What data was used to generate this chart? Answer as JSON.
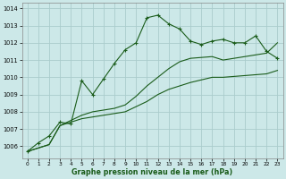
{
  "xlabel": "Graphe pression niveau de la mer (hPa)",
  "background_color": "#cce8e8",
  "grid_color": "#aacccc",
  "line_color": "#1a5c1a",
  "x_values": [
    0,
    1,
    2,
    3,
    4,
    5,
    6,
    7,
    8,
    9,
    10,
    11,
    12,
    13,
    14,
    15,
    16,
    17,
    18,
    19,
    20,
    21,
    22,
    23
  ],
  "y_main": [
    1005.7,
    1006.2,
    1006.6,
    1007.4,
    1007.3,
    1009.8,
    1009.0,
    1009.9,
    1010.8,
    1011.6,
    1012.0,
    1013.45,
    1013.6,
    1013.1,
    1012.8,
    1012.1,
    1011.9,
    1012.1,
    1012.2,
    1012.0,
    1012.0,
    1012.4,
    1011.5,
    1011.1
  ],
  "y_line2": [
    1005.7,
    1005.9,
    1006.1,
    1007.2,
    1007.4,
    1007.6,
    1007.7,
    1007.8,
    1007.9,
    1008.0,
    1008.3,
    1008.6,
    1009.0,
    1009.3,
    1009.5,
    1009.7,
    1009.85,
    1010.0,
    1010.0,
    1010.05,
    1010.1,
    1010.15,
    1010.2,
    1010.4
  ],
  "y_line3": [
    1005.7,
    1005.9,
    1006.1,
    1007.2,
    1007.5,
    1007.8,
    1008.0,
    1008.1,
    1008.2,
    1008.4,
    1008.9,
    1009.5,
    1010.0,
    1010.5,
    1010.9,
    1011.1,
    1011.15,
    1011.2,
    1011.0,
    1011.1,
    1011.2,
    1011.3,
    1011.4,
    1012.0
  ],
  "ylim": [
    1005.3,
    1014.3
  ],
  "xlim": [
    -0.5,
    23.5
  ],
  "yticks": [
    1006,
    1007,
    1008,
    1009,
    1010,
    1011,
    1012,
    1013,
    1014
  ],
  "xticks": [
    0,
    1,
    2,
    3,
    4,
    5,
    6,
    7,
    8,
    9,
    10,
    11,
    12,
    13,
    14,
    15,
    16,
    17,
    18,
    19,
    20,
    21,
    22,
    23
  ]
}
